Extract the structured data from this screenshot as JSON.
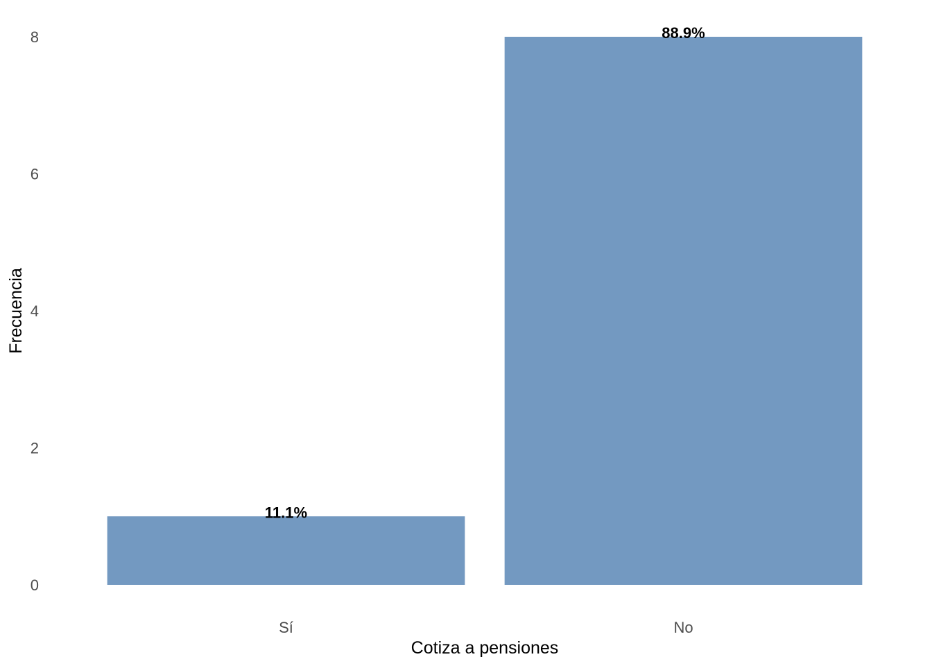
{
  "chart_data": {
    "type": "bar",
    "categories": [
      "Sí",
      "No"
    ],
    "values": [
      1,
      8
    ],
    "data_labels": [
      "11.1%",
      "88.9%"
    ],
    "xlabel": "Cotiza a pensiones",
    "ylabel": "Frecuencia",
    "ylim": [
      0,
      8
    ],
    "yticks": [
      0,
      2,
      4,
      6,
      8
    ],
    "grid": false,
    "legend": "none",
    "bar_color": "#7399c1"
  }
}
